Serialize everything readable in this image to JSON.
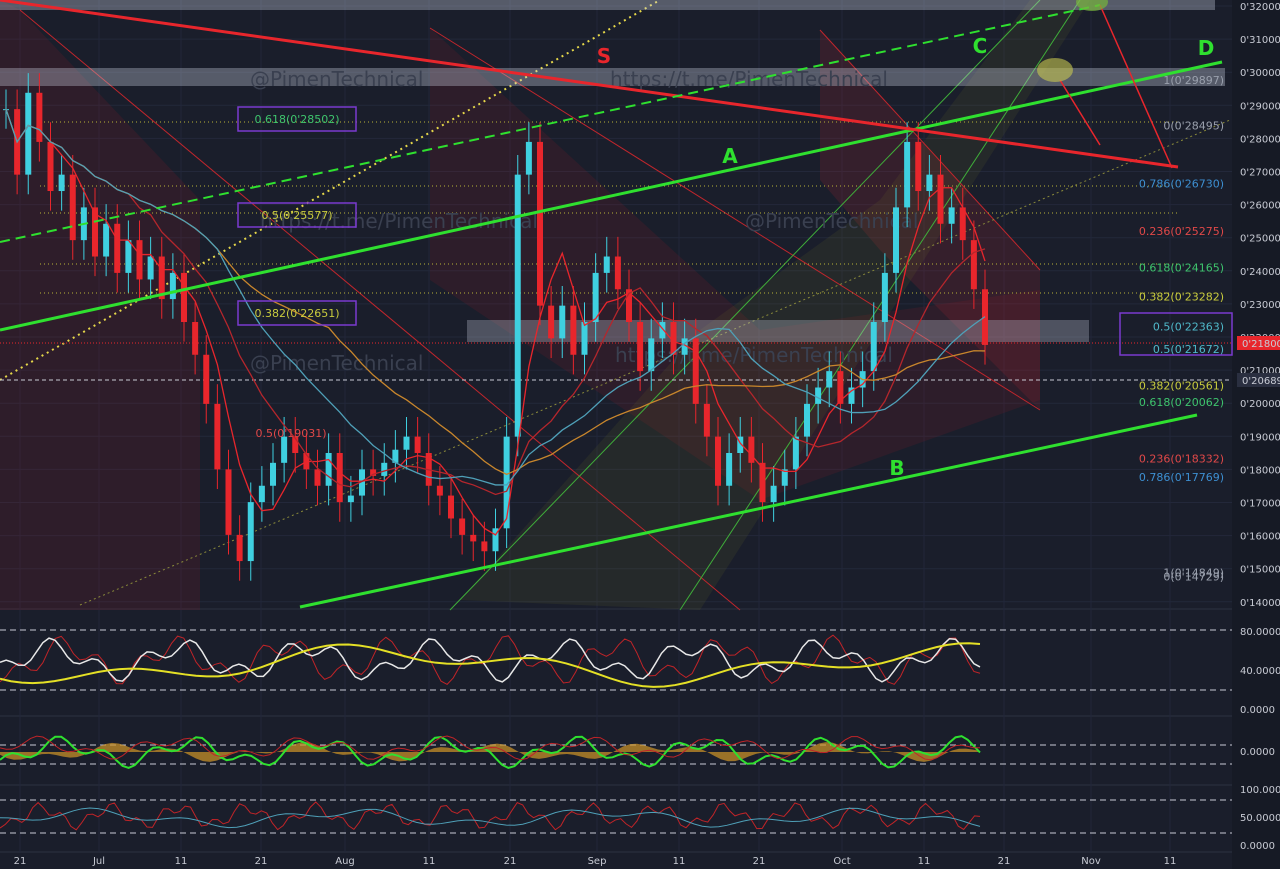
{
  "chart_data": [
    {
      "type": "candlestick",
      "title": "",
      "price_axis": {
        "ticks": [
          "0'32000",
          "0'31000",
          "0'30000",
          "0'29000",
          "0'28000",
          "0'27000",
          "0'26000",
          "0'25000",
          "0'24000",
          "0'23000",
          "0'22000",
          "0'21000",
          "0'20000",
          "0'19000",
          "0'18000",
          "0'17000",
          "0'16000",
          "0'15000",
          "0'14000"
        ],
        "range": [
          0.1395,
          0.3215
        ],
        "last_price": "0'21800",
        "marker_price": "0'20689"
      },
      "time_axis": {
        "labels": [
          "21",
          "Jul",
          "11",
          "21",
          "Aug",
          "11",
          "21",
          "Sep",
          "11",
          "21",
          "Oct",
          "11",
          "21",
          "Nov",
          "11"
        ]
      },
      "trend_labels": [
        "S",
        "A",
        "B",
        "C",
        "D"
      ],
      "watermarks": [
        "@PimenTechnical",
        "https://t.me/PimenTechnical"
      ],
      "fib_left": [
        {
          "label": "0.618(0'28502)",
          "price": 0.28502
        },
        {
          "label": "0.5(0'25577)",
          "price": 0.25577
        },
        {
          "label": "0.382(0'22651)",
          "price": 0.22651
        },
        {
          "label": "0.5(0'19031)",
          "price": 0.19031
        }
      ],
      "fib_right": [
        {
          "label": "1(0'29897)",
          "price": 0.29897,
          "color": "#9aa0ad"
        },
        {
          "label": "0(0'28495)",
          "price": 0.28495,
          "color": "#9aa0ad"
        },
        {
          "label": "0.786(0'26730)",
          "price": 0.2673,
          "color": "#3d8fd1"
        },
        {
          "label": "0.236(0'25275)",
          "price": 0.25275,
          "color": "#e04848"
        },
        {
          "label": "0.618(0'24165)",
          "price": 0.24165,
          "color": "#3ec46d"
        },
        {
          "label": "0.382(0'23282)",
          "price": 0.23282,
          "color": "#c9cc3e"
        },
        {
          "label": "0.5(0'22363)",
          "price": 0.22363,
          "color": "#4fb8c9"
        },
        {
          "label": "0.5(0'21672)",
          "price": 0.21672,
          "color": "#4fb8c9"
        },
        {
          "label": "0.382(0'20561)",
          "price": 0.20561,
          "color": "#c9cc3e"
        },
        {
          "label": "0.618(0'20062)",
          "price": 0.20062,
          "color": "#3ec46d"
        },
        {
          "label": "0.236(0'18332)",
          "price": 0.18332,
          "color": "#e04848"
        },
        {
          "label": "0.786(0'17769)",
          "price": 0.17769,
          "color": "#3d8fd1"
        },
        {
          "label": "1(0'14849)",
          "price": 0.14849,
          "color": "#9aa0ad"
        },
        {
          "label": "0(0'14729)",
          "price": 0.14729,
          "color": "#9aa0ad"
        }
      ],
      "close_series": [
        0.29,
        0.27,
        0.295,
        0.28,
        0.265,
        0.27,
        0.25,
        0.26,
        0.245,
        0.255,
        0.24,
        0.25,
        0.238,
        0.245,
        0.232,
        0.24,
        0.225,
        0.215,
        0.2,
        0.18,
        0.16,
        0.152,
        0.17,
        0.175,
        0.182,
        0.19,
        0.185,
        0.18,
        0.175,
        0.185,
        0.17,
        0.172,
        0.18,
        0.178,
        0.182,
        0.186,
        0.19,
        0.185,
        0.175,
        0.172,
        0.165,
        0.16,
        0.158,
        0.155,
        0.162,
        0.19,
        0.27,
        0.28,
        0.23,
        0.22,
        0.23,
        0.215,
        0.225,
        0.24,
        0.245,
        0.235,
        0.225,
        0.21,
        0.22,
        0.225,
        0.215,
        0.22,
        0.2,
        0.19,
        0.175,
        0.185,
        0.19,
        0.182,
        0.17,
        0.175,
        0.18,
        0.19,
        0.2,
        0.205,
        0.21,
        0.2,
        0.205,
        0.21,
        0.225,
        0.24,
        0.26,
        0.28,
        0.265,
        0.27,
        0.255,
        0.26,
        0.25,
        0.235,
        0.218
      ]
    },
    {
      "type": "line",
      "name": "oscillator-1",
      "ticks": [
        "80.0000",
        "40.0000",
        "0.0000"
      ],
      "ylim": [
        0,
        100
      ]
    },
    {
      "type": "area",
      "name": "oscillator-2",
      "ticks": [
        "0.0000"
      ]
    },
    {
      "type": "line",
      "name": "oscillator-3",
      "ticks": [
        "100.0000",
        "50.0000",
        "0.0000"
      ],
      "ylim": [
        0,
        100
      ]
    }
  ],
  "colors": {
    "background": "#1a1e2b",
    "up": "#3fd0e0",
    "down": "#e8262c",
    "trend_green": "#2fe02f",
    "trend_red": "#e8262c",
    "price_tag": "#e8262c"
  }
}
